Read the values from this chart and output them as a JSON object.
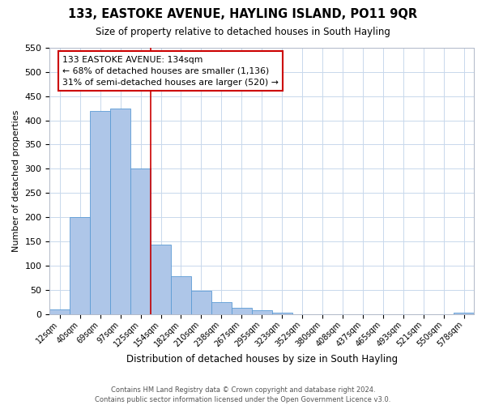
{
  "title": "133, EASTOKE AVENUE, HAYLING ISLAND, PO11 9QR",
  "subtitle": "Size of property relative to detached houses in South Hayling",
  "xlabel": "Distribution of detached houses by size in South Hayling",
  "ylabel": "Number of detached properties",
  "bar_labels": [
    "12sqm",
    "40sqm",
    "69sqm",
    "97sqm",
    "125sqm",
    "154sqm",
    "182sqm",
    "210sqm",
    "238sqm",
    "267sqm",
    "295sqm",
    "323sqm",
    "352sqm",
    "380sqm",
    "408sqm",
    "437sqm",
    "465sqm",
    "493sqm",
    "521sqm",
    "550sqm",
    "578sqm"
  ],
  "bar_heights": [
    10,
    200,
    420,
    425,
    300,
    143,
    78,
    48,
    25,
    13,
    8,
    2,
    0,
    0,
    0,
    0,
    0,
    0,
    0,
    0,
    3
  ],
  "bar_color": "#aec6e8",
  "bar_edgecolor": "#5b9bd5",
  "vline_color": "#cc0000",
  "annotation_line1": "133 EASTOKE AVENUE: 134sqm",
  "annotation_line2": "← 68% of detached houses are smaller (1,136)",
  "annotation_line3": "31% of semi-detached houses are larger (520) →",
  "annotation_box_edgecolor": "#cc0000",
  "annotation_box_facecolor": "#ffffff",
  "ylim": [
    0,
    550
  ],
  "yticks": [
    0,
    50,
    100,
    150,
    200,
    250,
    300,
    350,
    400,
    450,
    500,
    550
  ],
  "footer_line1": "Contains HM Land Registry data © Crown copyright and database right 2024.",
  "footer_line2": "Contains public sector information licensed under the Open Government Licence v3.0.",
  "background_color": "#ffffff",
  "grid_color": "#c8d8ec"
}
